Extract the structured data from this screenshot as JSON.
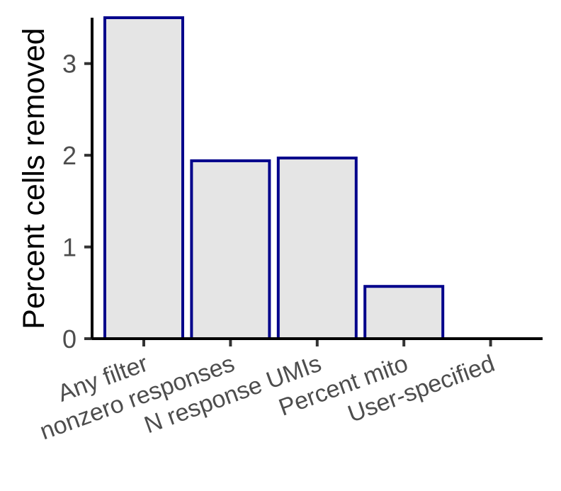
{
  "chart_data": {
    "type": "bar",
    "categories": [
      "Any filter",
      "nonzero responses",
      "N response UMIs",
      "Percent mito",
      "User-specified"
    ],
    "values": [
      3.5,
      1.94,
      1.97,
      0.57,
      0
    ],
    "xlabel": "",
    "ylabel": "Percent cells removed",
    "ylim": [
      0,
      3.5
    ],
    "yticks": [
      0,
      1,
      2,
      3
    ],
    "grid": false,
    "legend": "none",
    "bar_fill": "#e5e5e5",
    "bar_stroke": "#00008b",
    "axis_color": "#000000",
    "tick_label_color": "#4d4d4d"
  }
}
